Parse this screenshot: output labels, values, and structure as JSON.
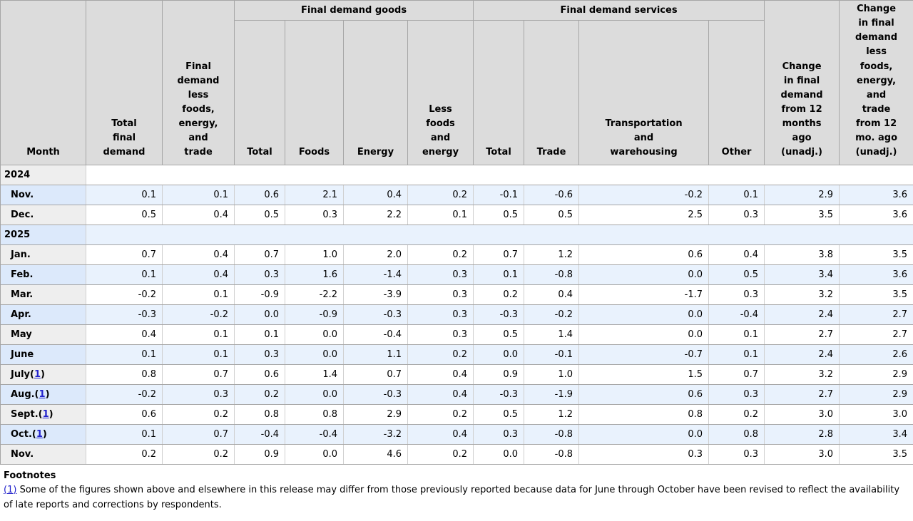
{
  "table": {
    "columns": {
      "month": "Month",
      "total_final_demand": "Total\nfinal\ndemand",
      "fd_less_fet": "Final\ndemand\nless\nfoods,\nenergy,\nand\ntrade",
      "goods_group": "Final demand goods",
      "services_group": "Final demand services",
      "goods": [
        "Total",
        "Foods",
        "Energy",
        "Less\nfoods\nand\nenergy"
      ],
      "services": [
        "Total",
        "Trade",
        "Transportation\nand\nwarehousing",
        "Other"
      ],
      "change_12mo": "Change\nin final\ndemand\nfrom 12\nmonths\nago\n(unadj.)",
      "change_12mo_less": "Change\nin final\ndemand\nless\nfoods,\nenergy,\nand\ntrade\nfrom 12\nmo. ago\n(unadj.)"
    },
    "rows": [
      {
        "type": "year",
        "label": "2024"
      },
      {
        "type": "month",
        "label": "Nov.",
        "values": [
          "0.1",
          "0.1",
          "0.6",
          "2.1",
          "0.4",
          "0.2",
          "-0.1",
          "-0.6",
          "-0.2",
          "0.1",
          "2.9",
          "3.6"
        ]
      },
      {
        "type": "month",
        "label": "Dec.",
        "values": [
          "0.5",
          "0.4",
          "0.5",
          "0.3",
          "2.2",
          "0.1",
          "0.5",
          "0.5",
          "2.5",
          "0.3",
          "3.5",
          "3.6"
        ]
      },
      {
        "type": "year",
        "label": "2025"
      },
      {
        "type": "month",
        "label": "Jan.",
        "values": [
          "0.7",
          "0.4",
          "0.7",
          "1.0",
          "2.0",
          "0.2",
          "0.7",
          "1.2",
          "0.6",
          "0.4",
          "3.8",
          "3.5"
        ]
      },
      {
        "type": "month",
        "label": "Feb.",
        "values": [
          "0.1",
          "0.4",
          "0.3",
          "1.6",
          "-1.4",
          "0.3",
          "0.1",
          "-0.8",
          "0.0",
          "0.5",
          "3.4",
          "3.6"
        ]
      },
      {
        "type": "month",
        "label": "Mar.",
        "values": [
          "-0.2",
          "0.1",
          "-0.9",
          "-2.2",
          "-3.9",
          "0.3",
          "0.2",
          "0.4",
          "-1.7",
          "0.3",
          "3.2",
          "3.5"
        ]
      },
      {
        "type": "month",
        "label": "Apr.",
        "values": [
          "-0.3",
          "-0.2",
          "0.0",
          "-0.9",
          "-0.3",
          "0.3",
          "-0.3",
          "-0.2",
          "0.0",
          "-0.4",
          "2.4",
          "2.7"
        ]
      },
      {
        "type": "month",
        "label": "May",
        "values": [
          "0.4",
          "0.1",
          "0.1",
          "0.0",
          "-0.4",
          "0.3",
          "0.5",
          "1.4",
          "0.0",
          "0.1",
          "2.7",
          "2.7"
        ]
      },
      {
        "type": "month",
        "label": "June",
        "values": [
          "0.1",
          "0.1",
          "0.3",
          "0.0",
          "1.1",
          "0.2",
          "0.0",
          "-0.1",
          "-0.7",
          "0.1",
          "2.4",
          "2.6"
        ]
      },
      {
        "type": "month",
        "label": "July",
        "footnote": "1",
        "values": [
          "0.8",
          "0.7",
          "0.6",
          "1.4",
          "0.7",
          "0.4",
          "0.9",
          "1.0",
          "1.5",
          "0.7",
          "3.2",
          "2.9"
        ]
      },
      {
        "type": "month",
        "label": "Aug.",
        "footnote": "1",
        "values": [
          "-0.2",
          "0.3",
          "0.2",
          "0.0",
          "-0.3",
          "0.4",
          "-0.3",
          "-1.9",
          "0.6",
          "0.3",
          "2.7",
          "2.9"
        ]
      },
      {
        "type": "month",
        "label": "Sept.",
        "footnote": "1",
        "values": [
          "0.6",
          "0.2",
          "0.8",
          "0.8",
          "2.9",
          "0.2",
          "0.5",
          "1.2",
          "0.8",
          "0.2",
          "3.0",
          "3.0"
        ]
      },
      {
        "type": "month",
        "label": "Oct.",
        "footnote": "1",
        "values": [
          "0.1",
          "0.7",
          "-0.4",
          "-0.4",
          "-3.2",
          "0.4",
          "0.3",
          "-0.8",
          "0.0",
          "0.8",
          "2.8",
          "3.4"
        ]
      },
      {
        "type": "month",
        "label": "Nov.",
        "values": [
          "0.2",
          "0.2",
          "0.9",
          "0.0",
          "4.6",
          "0.2",
          "0.0",
          "-0.8",
          "0.3",
          "0.3",
          "3.0",
          "3.5"
        ]
      }
    ]
  },
  "footnotes": {
    "title": "Footnotes",
    "items": [
      {
        "marker": "(1)",
        "text": "Some of the figures shown above and elsewhere in this release may differ from those previously reported because data for June through October have been revised to reflect the availability of late reports and corrections by respondents."
      }
    ]
  },
  "colors": {
    "header_gray": "#dcdcdc",
    "label_gray": "#eeeeee",
    "row_blue": "#e9f2fd",
    "label_blue": "#dce9fb",
    "border_dark": "#a6a6a6",
    "border_light": "#cfcfcf",
    "link_blue": "#2222cc"
  }
}
